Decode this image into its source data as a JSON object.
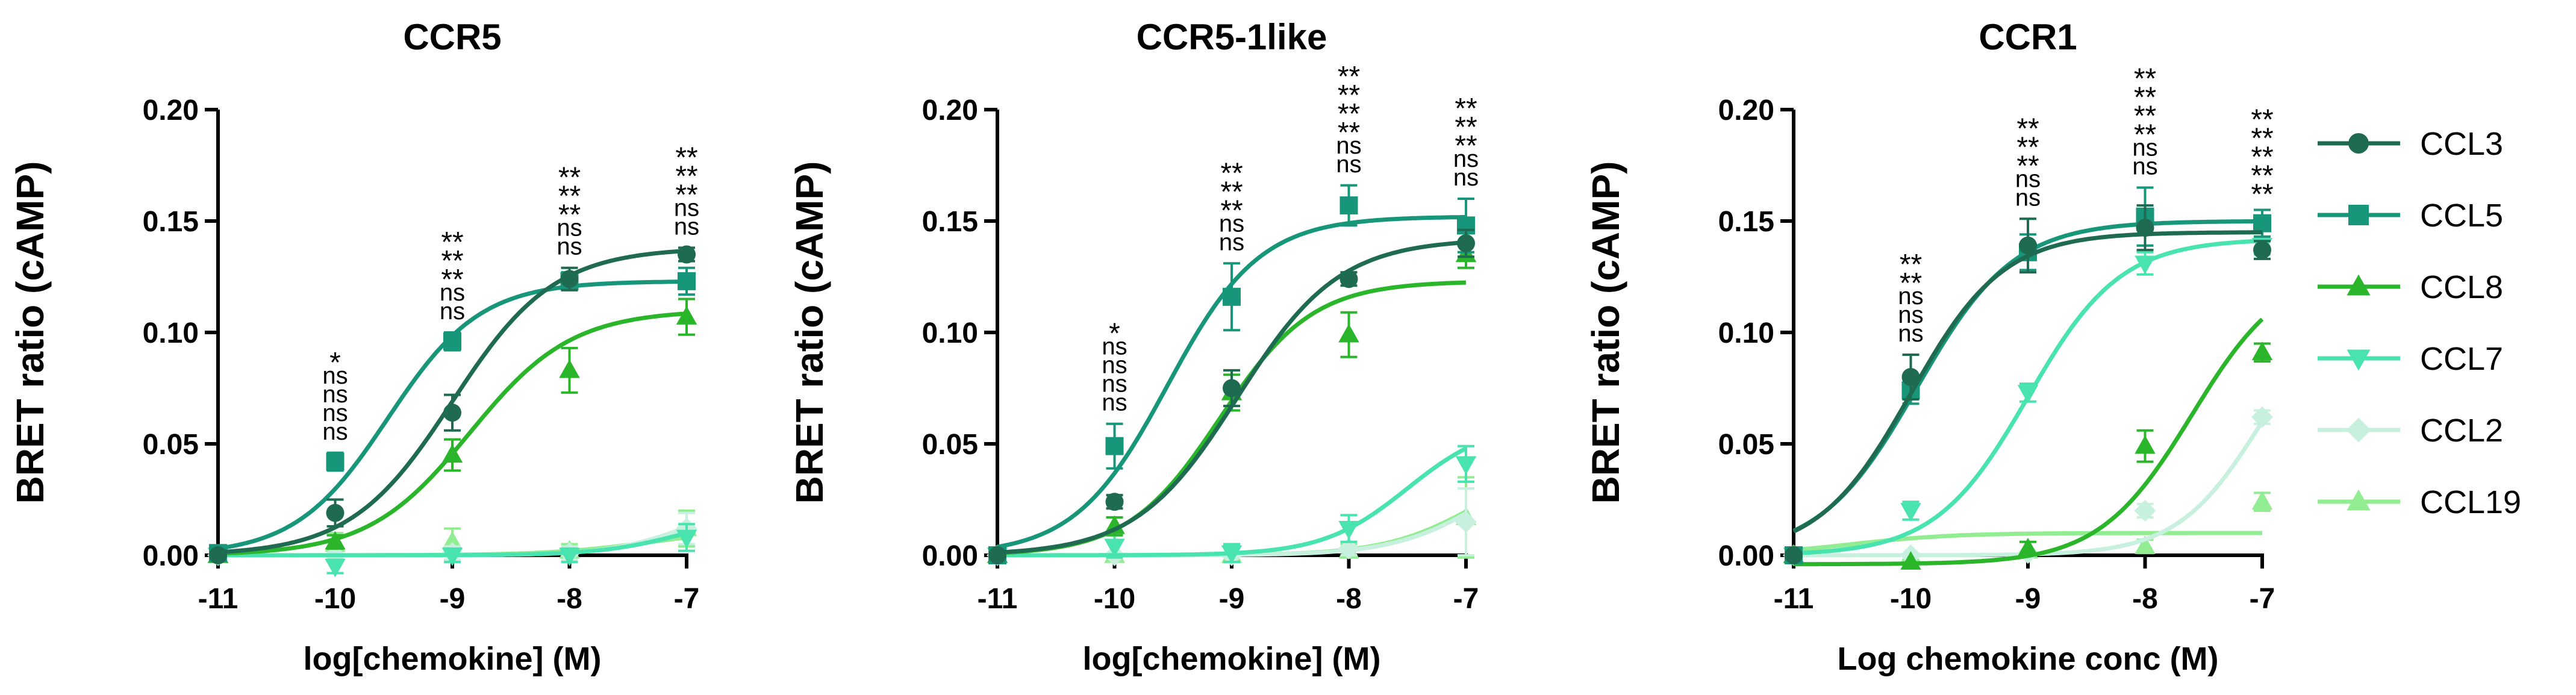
{
  "colors": {
    "CCL3": "#1f6b52",
    "CCL5": "#18967a",
    "CCL8": "#2bb52b",
    "CCL7": "#49e3b0",
    "CCL2": "#c8f0df",
    "CCL19": "#92ec92",
    "axis": "#000000"
  },
  "legend": {
    "position": "right",
    "entries": [
      {
        "name": "CCL3",
        "marker": "circle"
      },
      {
        "name": "CCL5",
        "marker": "square"
      },
      {
        "name": "CCL8",
        "marker": "triangle-up"
      },
      {
        "name": "CCL7",
        "marker": "triangle-down"
      },
      {
        "name": "CCL2",
        "marker": "diamond"
      },
      {
        "name": "CCL19",
        "marker": "triangle-up"
      }
    ]
  },
  "chart_data": [
    {
      "type": "line",
      "title": "CCR5",
      "xlabel": "log[chemokine] (M)",
      "ylabel": "BRET ratio  (cAMP)",
      "x": [
        -11,
        -10,
        -9,
        -8,
        -7
      ],
      "xlim": [
        -11,
        -7
      ],
      "ylim": [
        0,
        0.2
      ],
      "xticks": [
        "-11",
        "-10",
        "-9",
        "-8",
        "-7"
      ],
      "yticks": [
        "0.00",
        "0.05",
        "0.10",
        "0.15",
        "0.20"
      ],
      "series": [
        {
          "name": "CCL3",
          "values": [
            0.0,
            0.019,
            0.064,
            0.124,
            0.135
          ],
          "errors": [
            0.002,
            0.006,
            0.008,
            0.005,
            0.003
          ],
          "fit": {
            "bottom": 0.0,
            "top": 0.138,
            "logEC50": -9.0,
            "hill": 1.0
          }
        },
        {
          "name": "CCL5",
          "values": [
            0.001,
            0.042,
            0.096,
            0.123,
            0.123
          ],
          "errors": [
            0.002,
            0.004,
            0.004,
            0.004,
            0.006
          ],
          "fit": {
            "bottom": 0.0,
            "top": 0.123,
            "logEC50": -9.55,
            "hill": 1.1
          }
        },
        {
          "name": "CCL8",
          "values": [
            0.0,
            0.006,
            0.045,
            0.083,
            0.107
          ],
          "errors": [
            0.002,
            0.003,
            0.007,
            0.01,
            0.008
          ],
          "fit": {
            "bottom": 0.0,
            "top": 0.11,
            "logEC50": -8.85,
            "hill": 1.0
          }
        },
        {
          "name": "CCL7",
          "values": [
            0.0,
            -0.005,
            0.0,
            0.0,
            0.008
          ],
          "errors": [
            0.002,
            0.003,
            0.003,
            0.003,
            0.006
          ],
          "fit": {
            "bottom": 0.0,
            "top": 0.02,
            "logEC50": -7.0,
            "hill": 1.2
          }
        },
        {
          "name": "CCL2",
          "values": [
            0.0,
            0.0,
            0.001,
            0.001,
            0.012
          ],
          "errors": [
            0.002,
            0.002,
            0.003,
            0.003,
            0.007
          ],
          "fit": {
            "bottom": 0.0,
            "top": 0.025,
            "logEC50": -7.0,
            "hill": 1.3
          }
        },
        {
          "name": "CCL19",
          "values": [
            0.0,
            0.005,
            0.006,
            0.002,
            0.012
          ],
          "errors": [
            0.002,
            0.005,
            0.006,
            0.003,
            0.008
          ],
          "fit": {
            "bottom": 0.0,
            "top": 0.012,
            "logEC50": -7.3,
            "hill": 1.0
          }
        }
      ],
      "annotations": [
        {
          "x": -10,
          "lines": [
            "*",
            "ns",
            "ns",
            "ns",
            "ns"
          ]
        },
        {
          "x": -9,
          "lines": [
            "**",
            "**",
            "**",
            "ns",
            "ns"
          ]
        },
        {
          "x": -8,
          "lines": [
            "**",
            "**",
            "**",
            "ns",
            "ns"
          ]
        },
        {
          "x": -7,
          "lines": [
            "**",
            "**",
            "**",
            "ns",
            "ns"
          ]
        }
      ]
    },
    {
      "type": "line",
      "title": "CCR5-1like",
      "xlabel": "log[chemokine] (M)",
      "ylabel": "BRET ratio  (cAMP)",
      "x": [
        -11,
        -10,
        -9,
        -8,
        -7
      ],
      "xlim": [
        -11,
        -7
      ],
      "ylim": [
        0,
        0.2
      ],
      "xticks": [
        "-11",
        "-10",
        "-9",
        "-8",
        "-7"
      ],
      "yticks": [
        "0.00",
        "0.05",
        "0.10",
        "0.15",
        "0.20"
      ],
      "series": [
        {
          "name": "CCL3",
          "values": [
            0.0,
            0.024,
            0.075,
            0.124,
            0.14
          ],
          "errors": [
            0.002,
            0.003,
            0.008,
            0.003,
            0.006
          ],
          "fit": {
            "bottom": 0.0,
            "top": 0.142,
            "logEC50": -8.95,
            "hill": 1.0
          }
        },
        {
          "name": "CCL5",
          "values": [
            0.0,
            0.049,
            0.116,
            0.157,
            0.148
          ],
          "errors": [
            0.002,
            0.01,
            0.015,
            0.009,
            0.012
          ],
          "fit": {
            "bottom": 0.0,
            "top": 0.152,
            "logEC50": -9.55,
            "hill": 1.1
          }
        },
        {
          "name": "CCL8",
          "values": [
            0.0,
            0.013,
            0.073,
            0.099,
            0.135
          ],
          "errors": [
            0.002,
            0.004,
            0.008,
            0.01,
            0.006
          ],
          "fit": {
            "bottom": 0.0,
            "top": 0.123,
            "logEC50": -9.1,
            "hill": 1.1
          }
        },
        {
          "name": "CCL7",
          "values": [
            0.0,
            0.004,
            0.001,
            0.012,
            0.041
          ],
          "errors": [
            0.002,
            0.005,
            0.004,
            0.006,
            0.008
          ],
          "fit": {
            "bottom": 0.0,
            "top": 0.06,
            "logEC50": -7.5,
            "hill": 1.2
          }
        },
        {
          "name": "CCL2",
          "values": [
            0.0,
            0.0,
            0.0,
            0.003,
            0.015
          ],
          "errors": [
            0.002,
            0.002,
            0.002,
            0.003,
            0.015
          ],
          "fit": {
            "bottom": 0.0,
            "top": 0.05,
            "logEC50": -6.8,
            "hill": 1.1
          }
        },
        {
          "name": "CCL19",
          "values": [
            0.0,
            0.0,
            0.0,
            0.002,
            0.017
          ],
          "errors": [
            0.002,
            0.002,
            0.002,
            0.003,
            0.018
          ],
          "fit": {
            "bottom": 0.0,
            "top": 0.045,
            "logEC50": -6.9,
            "hill": 1.1
          }
        }
      ],
      "annotations": [
        {
          "x": -10,
          "lines": [
            "*",
            "ns",
            "ns",
            "ns",
            "ns"
          ]
        },
        {
          "x": -9,
          "lines": [
            "**",
            "**",
            "**",
            "ns",
            "ns"
          ]
        },
        {
          "x": -8,
          "lines": [
            "**",
            "**",
            "**",
            "**",
            "ns",
            "ns"
          ]
        },
        {
          "x": -7,
          "lines": [
            "**",
            "**",
            "**",
            "ns",
            "ns"
          ]
        }
      ]
    },
    {
      "type": "line",
      "title": "CCR1",
      "xlabel": "Log chemokine conc (M)",
      "ylabel": "BRET ratio  (cAMP)",
      "x": [
        -11,
        -10,
        -9,
        -8,
        -7
      ],
      "xlim": [
        -11,
        -7
      ],
      "ylim": [
        0,
        0.2
      ],
      "xticks": [
        "-11",
        "-10",
        "-9",
        "-8",
        "-7"
      ],
      "yticks": [
        "0.00",
        "0.05",
        "0.10",
        "0.15",
        "0.20"
      ],
      "series": [
        {
          "name": "CCL3",
          "values": [
            0.0,
            0.08,
            0.139,
            0.147,
            0.137
          ],
          "errors": [
            0.002,
            0.01,
            0.012,
            0.01,
            0.004
          ],
          "fit": {
            "bottom": 0.0,
            "top": 0.145,
            "logEC50": -10.0,
            "hill": 1.1
          }
        },
        {
          "name": "CCL5",
          "values": [
            0.0,
            0.074,
            0.136,
            0.152,
            0.149
          ],
          "errors": [
            0.002,
            0.006,
            0.008,
            0.013,
            0.006
          ],
          "fit": {
            "bottom": 0.0,
            "top": 0.15,
            "logEC50": -9.95,
            "hill": 1.05
          }
        },
        {
          "name": "CCL8",
          "values": [
            0.0,
            -0.003,
            0.003,
            0.049,
            0.091
          ],
          "errors": [
            0.002,
            0.002,
            0.003,
            0.007,
            0.004
          ],
          "fit": {
            "bottom": -0.004,
            "top": 0.13,
            "logEC50": -7.6,
            "hill": 1.1
          }
        },
        {
          "name": "CCL7",
          "values": [
            0.0,
            0.02,
            0.073,
            0.131,
            0.139
          ],
          "errors": [
            0.002,
            0.004,
            0.004,
            0.005,
            0.004
          ],
          "fit": {
            "bottom": 0.0,
            "top": 0.142,
            "logEC50": -9.0,
            "hill": 1.1
          }
        },
        {
          "name": "CCL2",
          "values": [
            0.0,
            0.0,
            0.001,
            0.02,
            0.062
          ],
          "errors": [
            0.002,
            0.002,
            0.002,
            0.003,
            0.003
          ],
          "fit": {
            "bottom": 0.0,
            "top": 0.12,
            "logEC50": -7.0,
            "hill": 1.2
          }
        },
        {
          "name": "CCL19",
          "values": [
            0.0,
            0.0,
            0.002,
            0.004,
            0.024
          ],
          "errors": [
            0.002,
            0.002,
            0.002,
            0.003,
            0.004
          ],
          "fit": {
            "bottom": 0.0,
            "top": 0.01,
            "logEC50": -10.5,
            "hill": 1.0
          }
        }
      ],
      "annotations": [
        {
          "x": -10,
          "lines": [
            "**",
            "**",
            "ns",
            "ns",
            "ns"
          ]
        },
        {
          "x": -9,
          "lines": [
            "**",
            "**",
            "**",
            "ns",
            "ns"
          ]
        },
        {
          "x": -8,
          "lines": [
            "**",
            "**",
            "**",
            "**",
            "ns",
            "ns"
          ]
        },
        {
          "x": -7,
          "lines": [
            "**",
            "**",
            "**",
            "**",
            "**"
          ]
        }
      ]
    }
  ]
}
